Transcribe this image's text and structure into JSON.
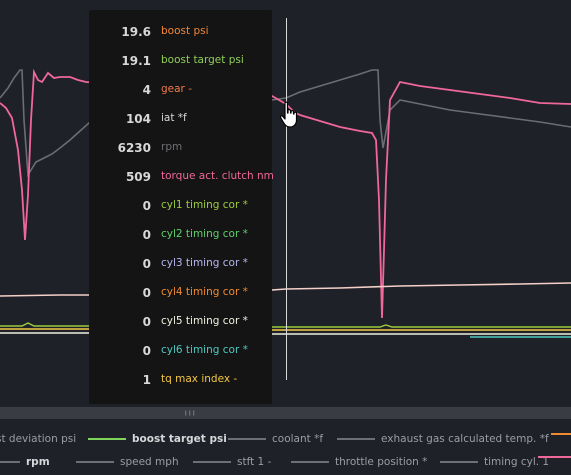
{
  "tooltip": {
    "rows": [
      {
        "value": "19.6",
        "label": "boost psi",
        "color": "#f0883a"
      },
      {
        "value": "19.1",
        "label": "boost target psi",
        "color": "#8fce5a"
      },
      {
        "value": "4",
        "label": "gear -",
        "color": "#f07a4a"
      },
      {
        "value": "104",
        "label": "iat *f",
        "color": "#d6d7da"
      },
      {
        "value": "6230",
        "label": "rpm",
        "color": "#6d6f75"
      },
      {
        "value": "509",
        "label": "torque act. clutch nm",
        "color": "#f0679a"
      },
      {
        "value": "0",
        "label": "cyl1 timing cor *",
        "color": "#9ccc3c"
      },
      {
        "value": "0",
        "label": "cyl2 timing cor *",
        "color": "#5ed06a"
      },
      {
        "value": "0",
        "label": "cyl3 timing cor *",
        "color": "#b8b6f0"
      },
      {
        "value": "0",
        "label": "cyl4 timing cor *",
        "color": "#f08a30"
      },
      {
        "value": "0",
        "label": "cyl5 timing cor *",
        "color": "#f1f1e0"
      },
      {
        "value": "0",
        "label": "cyl6 timing cor *",
        "color": "#4ec9c0"
      },
      {
        "value": "1",
        "label": "tq max index -",
        "color": "#f3c844"
      }
    ]
  },
  "legend": {
    "row1": [
      {
        "label": "st deviation psi",
        "color": "",
        "bold": false
      },
      {
        "label": "boost target psi",
        "color": "#7fd65a",
        "bold": true
      },
      {
        "label": "coolant *f",
        "color": "#6d6f75",
        "bold": false
      },
      {
        "label": "exhaust gas calculated temp. *f",
        "color": "#6d6f75",
        "bold": false
      },
      {
        "label": "",
        "color": "#f08a30",
        "bold": false
      }
    ],
    "row2": [
      {
        "label": "rpm",
        "color": "#6d6f75",
        "bold": true
      },
      {
        "label": "speed mph",
        "color": "#6d6f75",
        "bold": false
      },
      {
        "label": "stft 1 -",
        "color": "#6d6f75",
        "bold": false
      },
      {
        "label": "throttle position *",
        "color": "#6d6f75",
        "bold": false
      },
      {
        "label": "timing cyl. 1",
        "color": "#6d6f75",
        "bold": false
      },
      {
        "label": "",
        "color": "#f0679a",
        "bold": false
      }
    ]
  },
  "icons": {
    "cursor": "hand-pointer-icon",
    "grip": "drag-grip-icon"
  }
}
